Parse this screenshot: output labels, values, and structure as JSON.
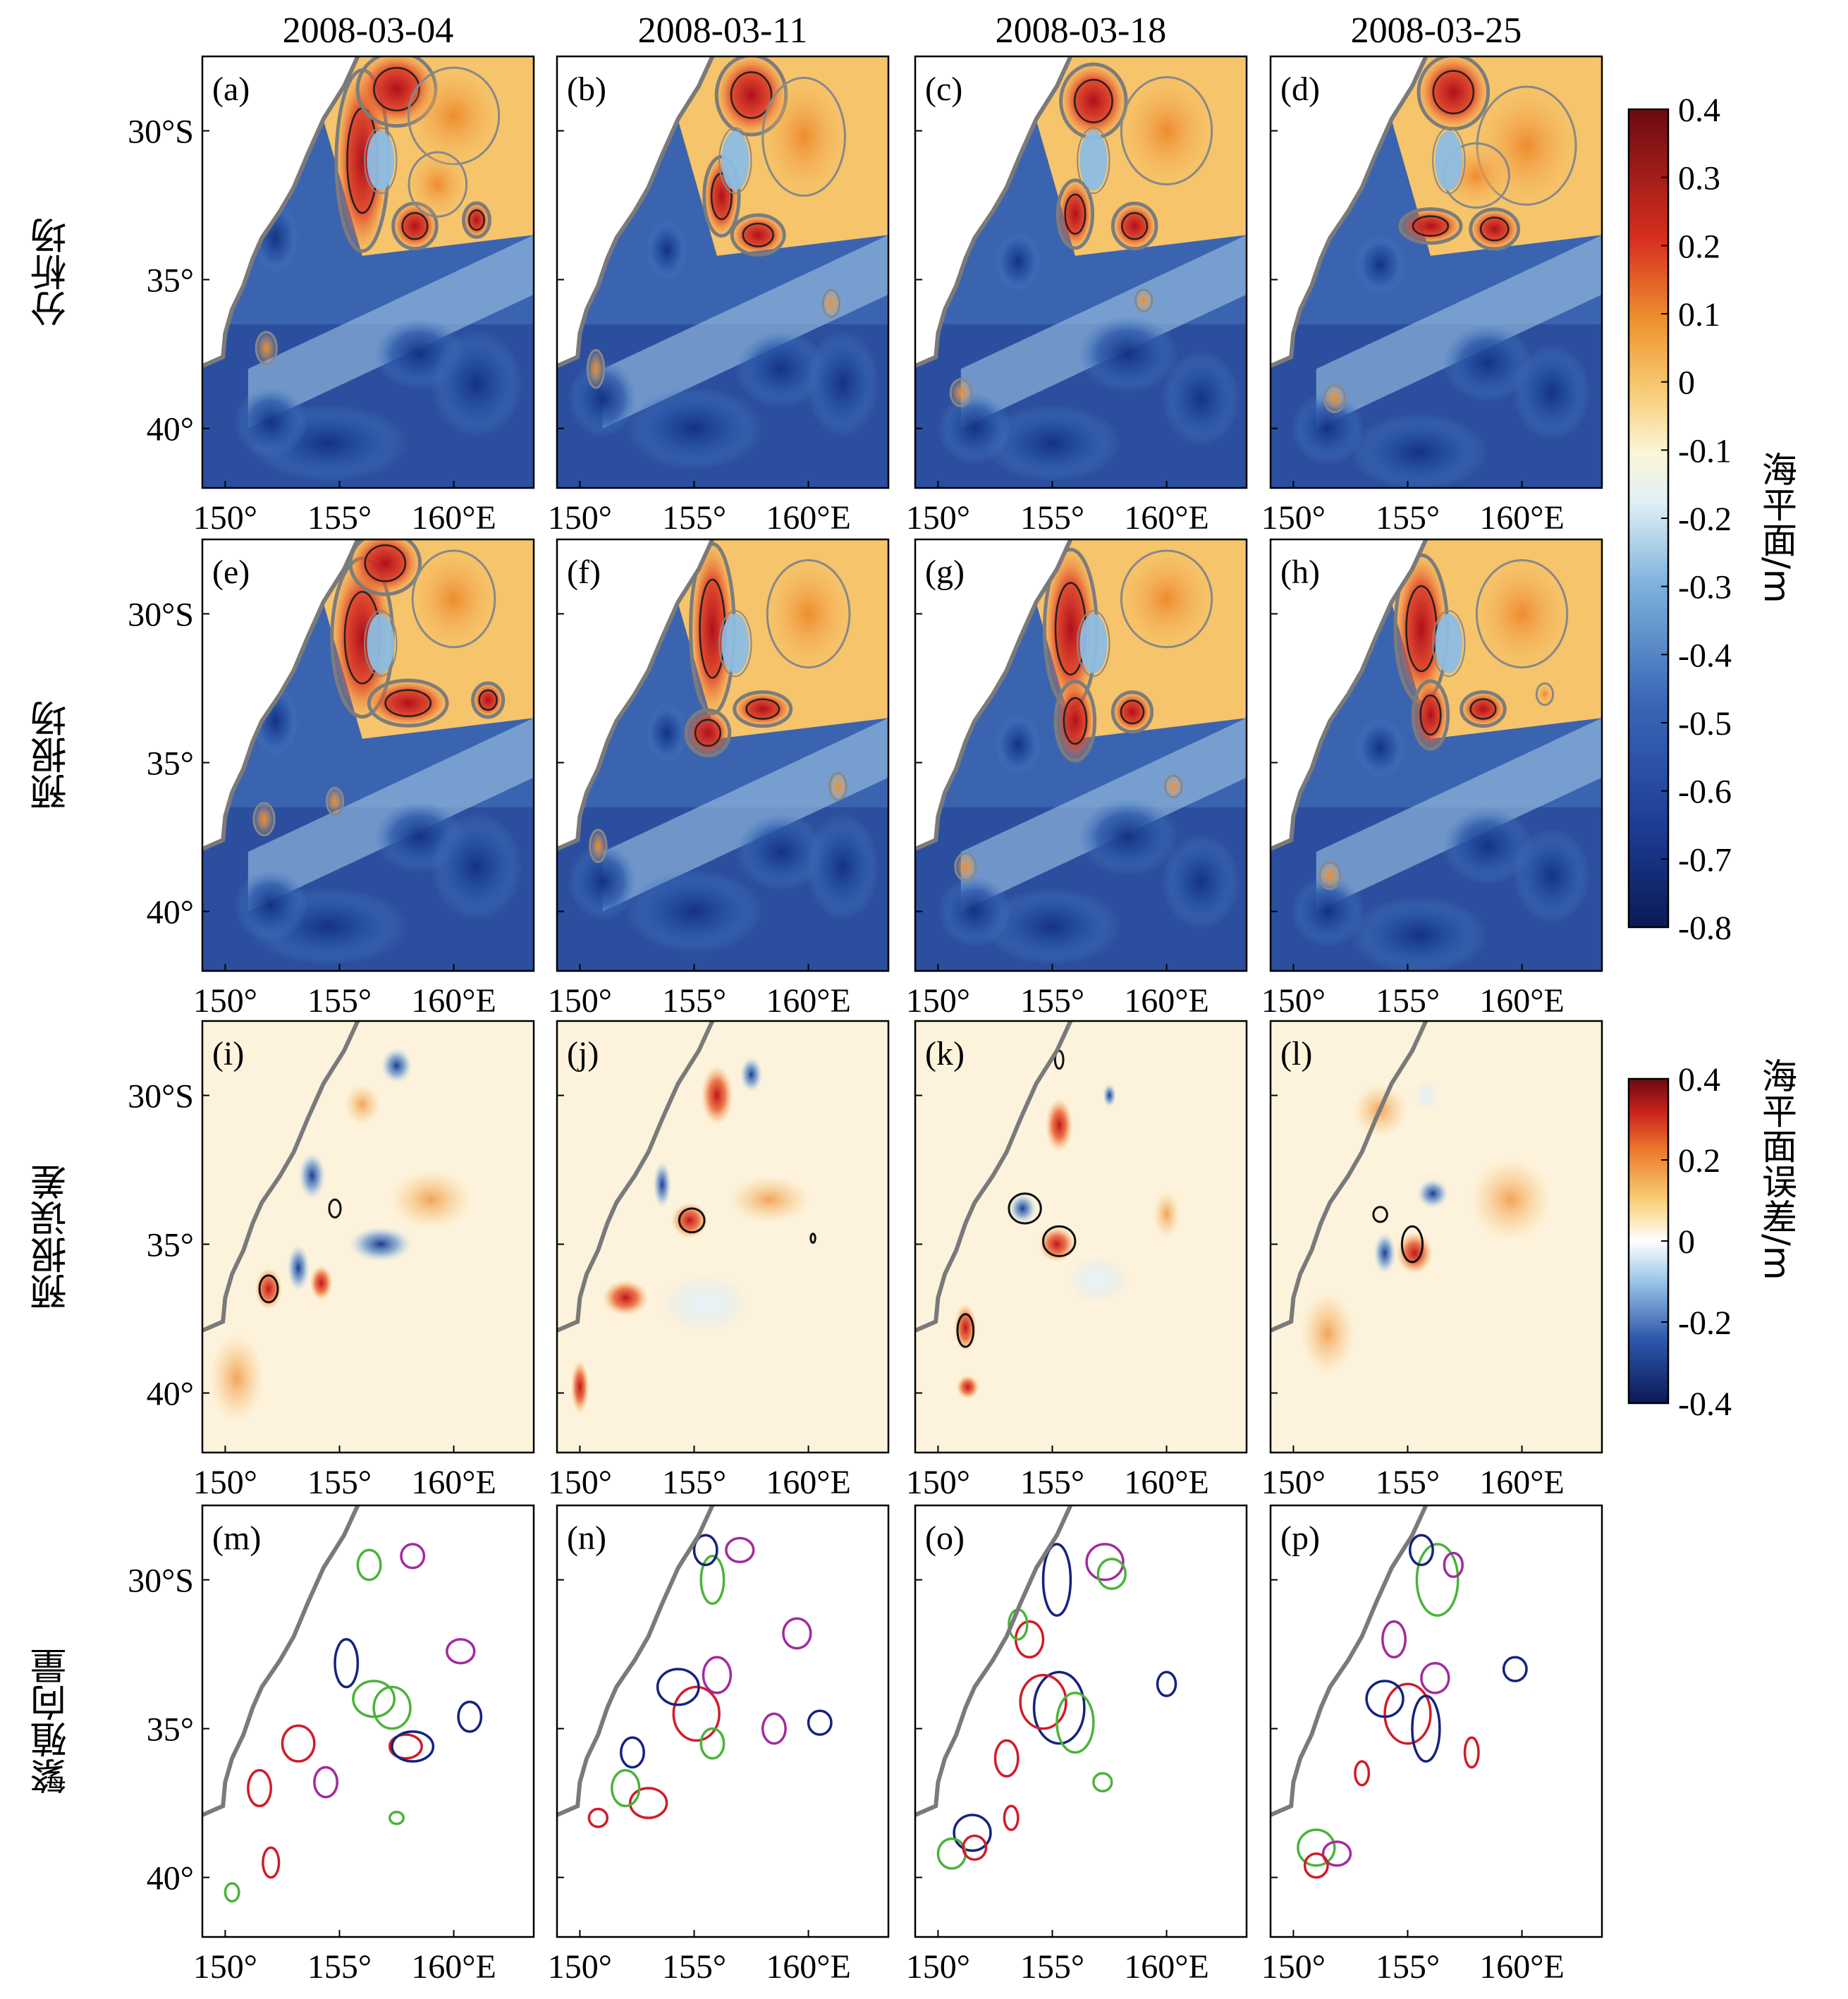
{
  "chart_data": {
    "type": "heatmap",
    "columns": [
      "2008-03-04",
      "2008-03-11",
      "2008-03-18",
      "2008-03-25"
    ],
    "rows": [
      {
        "label": "分析场",
        "panels": [
          "(a)",
          "(b)",
          "(c)",
          "(d)"
        ]
      },
      {
        "label": "预报场",
        "panels": [
          "(e)",
          "(f)",
          "(g)",
          "(h)"
        ]
      },
      {
        "label": "预报误差",
        "panels": [
          "(i)",
          "(j)",
          "(k)",
          "(l)"
        ]
      },
      {
        "label": "繁殖向量",
        "panels": [
          "(m)",
          "(n)",
          "(o)",
          "(p)"
        ]
      }
    ],
    "x_ticks": [
      "150°",
      "155°",
      "160°E"
    ],
    "y_ticks": [
      "30°S",
      "35°",
      "40°"
    ],
    "xlim": [
      149,
      163.5
    ],
    "ylim": [
      -42,
      -27.5
    ],
    "colorbar_ssh": {
      "label": "海平面/m",
      "ticks": [
        "0.4",
        "0.3",
        "0.2",
        "0.1",
        "0",
        "-0.1",
        "-0.2",
        "-0.3",
        "-0.4",
        "-0.5",
        "-0.6",
        "-0.7",
        "-0.8"
      ],
      "range": [
        -0.8,
        0.4
      ]
    },
    "colorbar_err": {
      "label": "海平面误差/m",
      "ticks": [
        "0.4",
        "0.2",
        "0",
        "-0.2",
        "-0.4"
      ],
      "range": [
        -0.4,
        0.4
      ]
    },
    "colors": {
      "coast": "#7a7a7a",
      "bv_red": "#d11b2a",
      "bv_blue": "#14237e",
      "bv_magenta": "#a12aa0",
      "bv_green": "#4bb33a"
    }
  }
}
